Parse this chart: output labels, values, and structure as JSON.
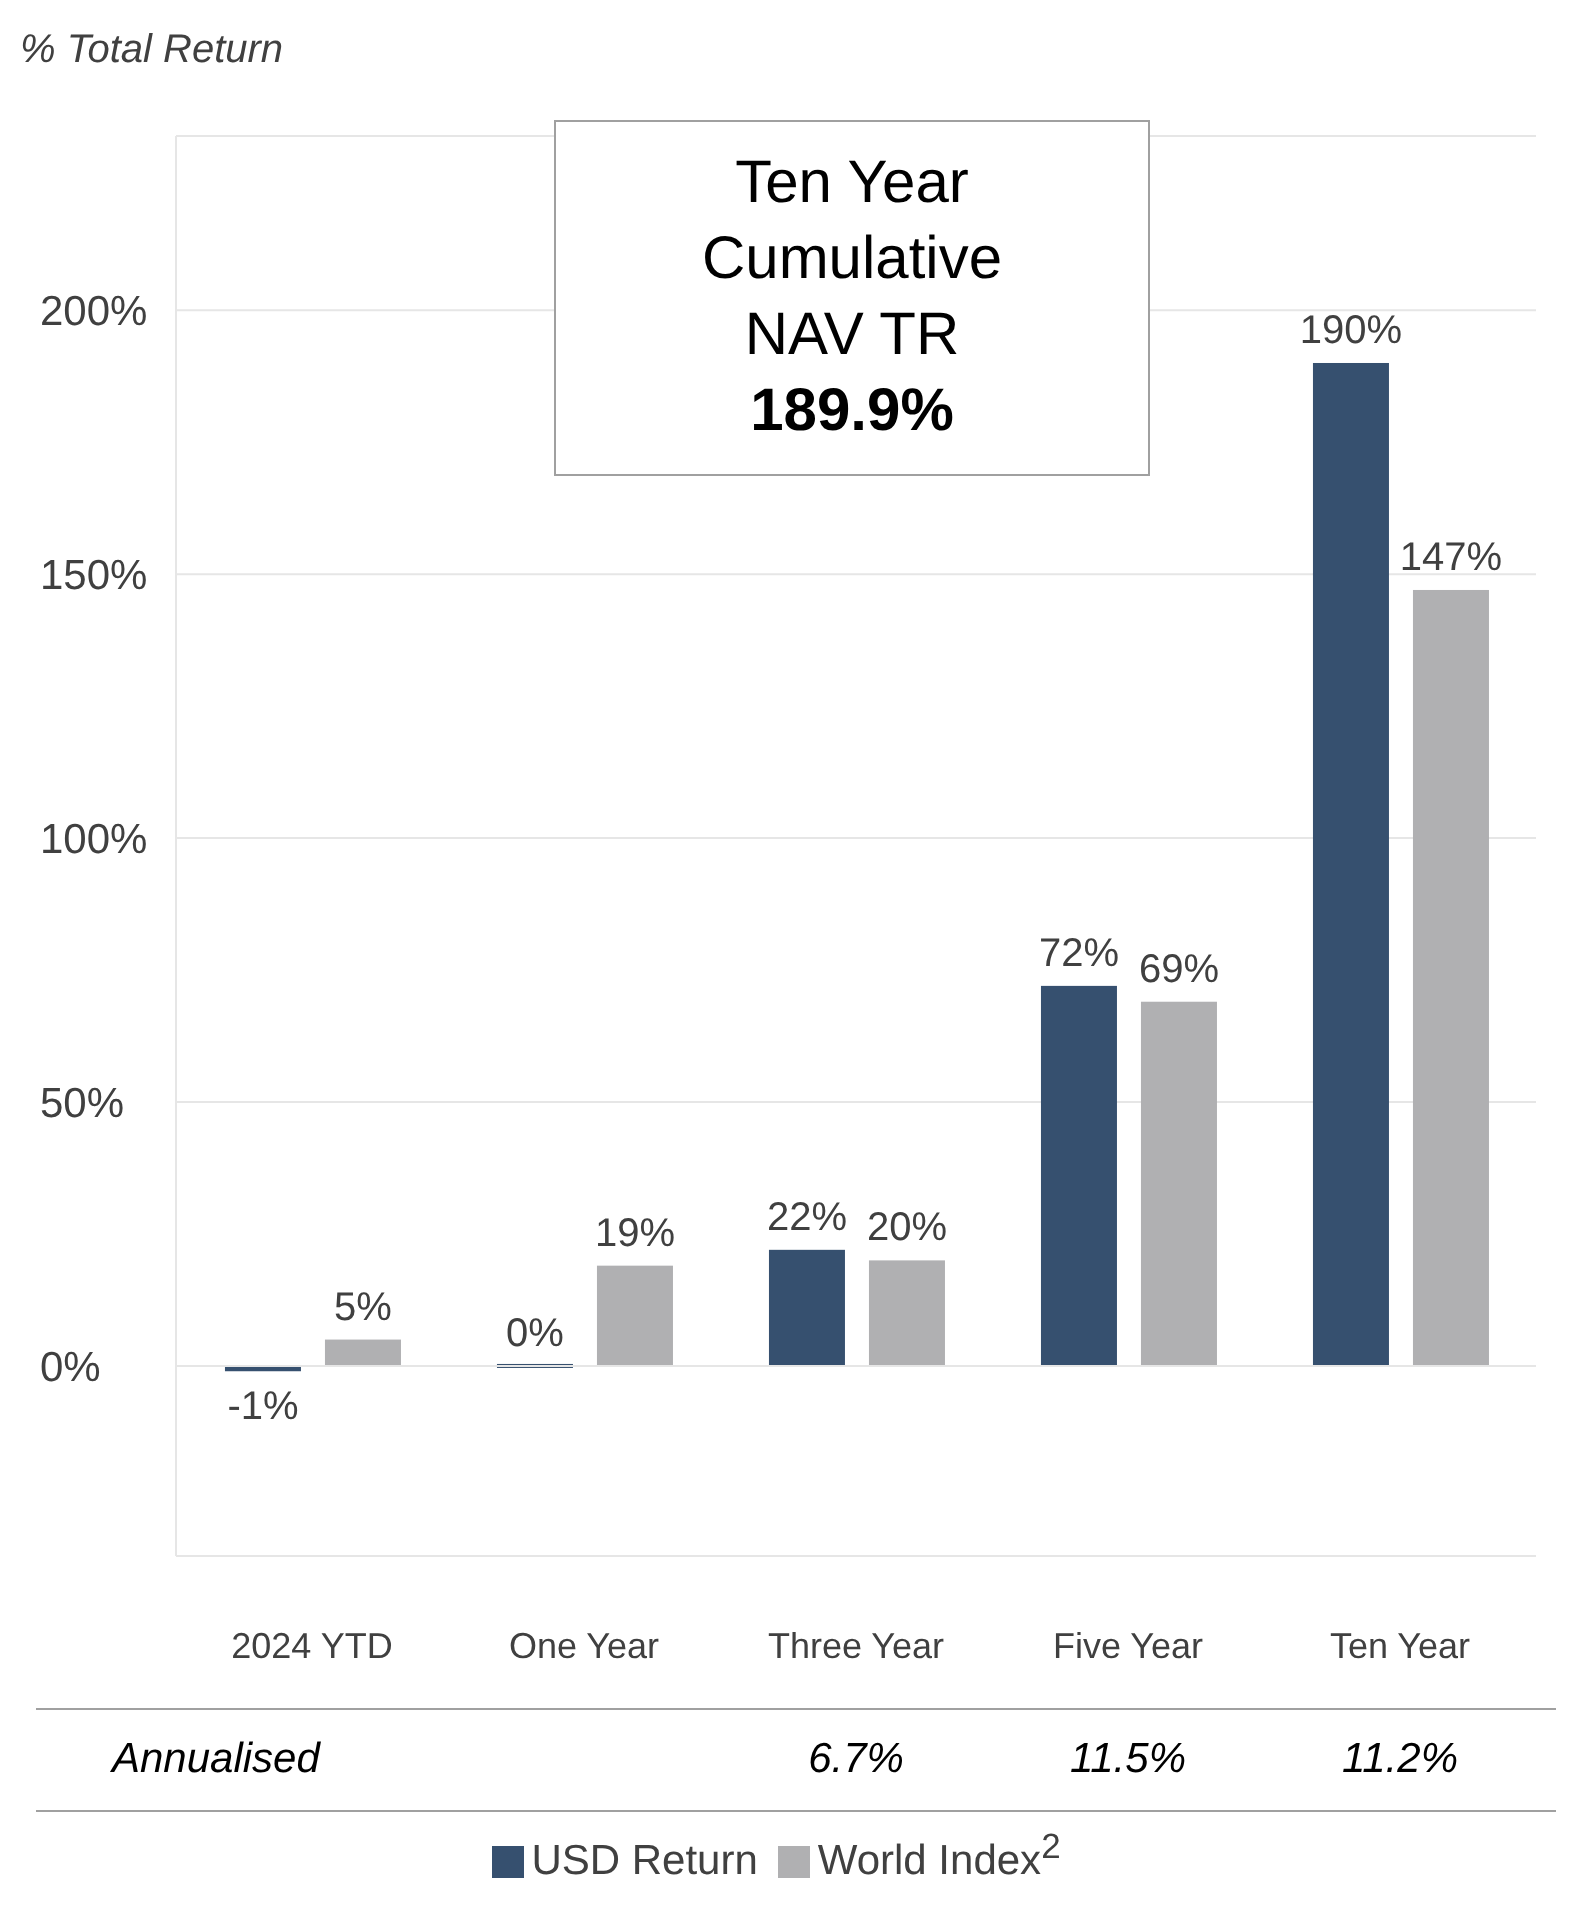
{
  "chart_data": {
    "type": "bar",
    "ylabel": "% Total Return",
    "categories": [
      "2024 YTD",
      "One Year",
      "Three Year",
      "Five Year",
      "Ten Year"
    ],
    "series": [
      {
        "name": "USD Return",
        "color": "#36506f",
        "values": [
          -1,
          0,
          22,
          72,
          190
        ],
        "value_labels": [
          "-1%",
          "0%",
          "22%",
          "72%",
          "190%"
        ]
      },
      {
        "name": "World Index$^{2}$",
        "color": "#b0b0b2",
        "values": [
          5,
          19,
          20,
          69,
          147
        ],
        "value_labels": [
          "5%",
          "19%",
          "20%",
          "69%",
          "147%"
        ]
      }
    ],
    "ylim": [
      -36,
      233
    ],
    "yticks": [
      {
        "value": 0,
        "label": "0%"
      },
      {
        "value": 50,
        "label": "50%"
      },
      {
        "value": 100,
        "label": "100%"
      },
      {
        "value": 150,
        "label": "150%"
      },
      {
        "value": 200,
        "label": "200%"
      }
    ],
    "grid": "y",
    "legend": "bottom",
    "annotations": [
      "Ten Year\nCumulative\nNAV TR\n189.9%",
      "Annualised",
      "6.7%",
      "11.5%",
      "11.2%"
    ]
  }
}
